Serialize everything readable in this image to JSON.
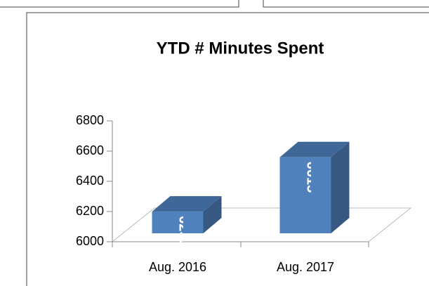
{
  "chart_data": {
    "type": "bar3d",
    "title": "YTD # Minutes Spent",
    "categories": [
      "Aug. 2016",
      "Aug. 2017"
    ],
    "values": [
      6255,
      6615
    ],
    "color": "#4f81bd",
    "ylim": [
      6000,
      6800
    ],
    "yticks": [
      6000,
      6200,
      6400,
      6600,
      6800
    ]
  }
}
